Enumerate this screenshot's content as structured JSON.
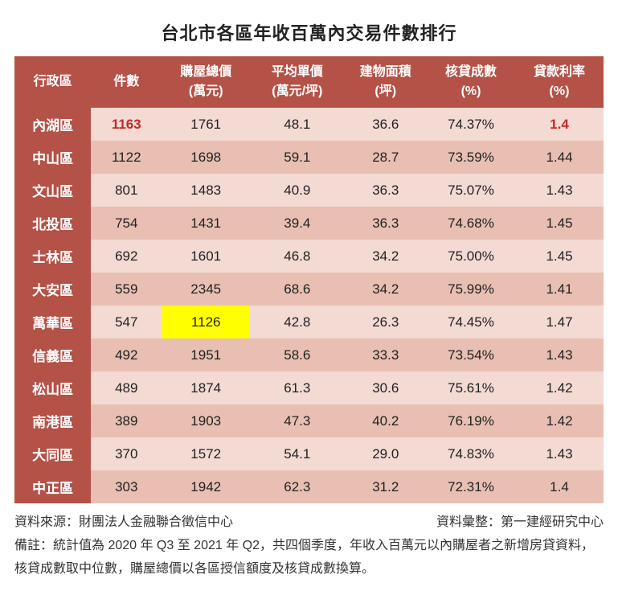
{
  "title": "台北市各區年收百萬內交易件數排行",
  "columns": [
    {
      "key": "district",
      "label": "行政區",
      "sub": ""
    },
    {
      "key": "count",
      "label": "件數",
      "sub": ""
    },
    {
      "key": "total",
      "label": "購屋總價",
      "sub": "(萬元)"
    },
    {
      "key": "unit",
      "label": "平均單價",
      "sub": "(萬元/坪)"
    },
    {
      "key": "area",
      "label": "建物面積",
      "sub": "(坪)"
    },
    {
      "key": "ltv",
      "label": "核貸成數",
      "sub": "(%)"
    },
    {
      "key": "rate",
      "label": "貸款利率",
      "sub": "(%)"
    }
  ],
  "rows": [
    {
      "district": "內湖區",
      "count": "1163",
      "total": "1761",
      "unit": "48.1",
      "area": "36.6",
      "ltv": "74.37%",
      "rate": "1.4",
      "hl": {
        "count": "red",
        "rate": "red"
      }
    },
    {
      "district": "中山區",
      "count": "1122",
      "total": "1698",
      "unit": "59.1",
      "area": "28.7",
      "ltv": "73.59%",
      "rate": "1.44"
    },
    {
      "district": "文山區",
      "count": "801",
      "total": "1483",
      "unit": "40.9",
      "area": "36.3",
      "ltv": "75.07%",
      "rate": "1.43"
    },
    {
      "district": "北投區",
      "count": "754",
      "total": "1431",
      "unit": "39.4",
      "area": "36.3",
      "ltv": "74.68%",
      "rate": "1.45"
    },
    {
      "district": "士林區",
      "count": "692",
      "total": "1601",
      "unit": "46.8",
      "area": "34.2",
      "ltv": "75.00%",
      "rate": "1.45"
    },
    {
      "district": "大安區",
      "count": "559",
      "total": "2345",
      "unit": "68.6",
      "area": "34.2",
      "ltv": "75.99%",
      "rate": "1.41"
    },
    {
      "district": "萬華區",
      "count": "547",
      "total": "1126",
      "unit": "42.8",
      "area": "26.3",
      "ltv": "74.45%",
      "rate": "1.47",
      "hl": {
        "total": "yellow"
      }
    },
    {
      "district": "信義區",
      "count": "492",
      "total": "1951",
      "unit": "58.6",
      "area": "33.3",
      "ltv": "73.54%",
      "rate": "1.43"
    },
    {
      "district": "松山區",
      "count": "489",
      "total": "1874",
      "unit": "61.3",
      "area": "30.6",
      "ltv": "75.61%",
      "rate": "1.42"
    },
    {
      "district": "南港區",
      "count": "389",
      "total": "1903",
      "unit": "47.3",
      "area": "40.2",
      "ltv": "76.19%",
      "rate": "1.42"
    },
    {
      "district": "大同區",
      "count": "370",
      "total": "1572",
      "unit": "54.1",
      "area": "29.0",
      "ltv": "74.83%",
      "rate": "1.43"
    },
    {
      "district": "中正區",
      "count": "303",
      "total": "1942",
      "unit": "62.3",
      "area": "31.2",
      "ltv": "72.31%",
      "rate": "1.4"
    }
  ],
  "footer": {
    "source_label": "資料來源：財團法人金融聯合徵信中心",
    "compiled_label": "資料彙整：第一建經研究中心",
    "note": "備註：統計值為 2020 年 Q3 至 2021 年 Q2，共四個季度，年收入百萬元以內購屋者之新增房貸資料，核貸成數取中位數，購屋總價以各區授信額度及核貸成數換算。"
  },
  "style": {
    "header_bg": "#b45248",
    "row_even_bg": "#f3dad3",
    "row_odd_bg": "#e8bfb2",
    "highlight_red": "#c62828",
    "highlight_yellow": "#ffff00",
    "col_widths": [
      "13%",
      "12%",
      "15%",
      "16%",
      "14%",
      "15%",
      "15%"
    ]
  }
}
